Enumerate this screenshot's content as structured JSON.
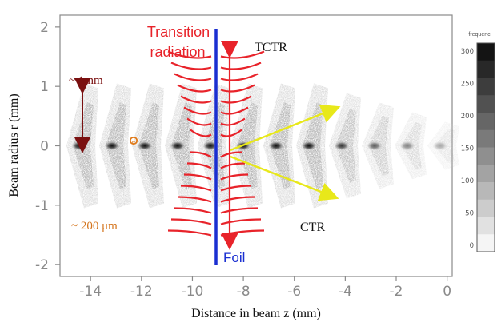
{
  "axes": {
    "x_label": "Distance in beam z (mm)",
    "y_label": "Beam radius r (mm)",
    "x_ticks": [
      "-14",
      "-12",
      "-10",
      "-8",
      "-6",
      "-4",
      "-2",
      "0"
    ],
    "x_tick_values": [
      -14,
      -12,
      -10,
      -8,
      -6,
      -4,
      -2,
      0
    ],
    "y_ticks": [
      "2",
      "1",
      "0",
      "-1",
      "-2"
    ],
    "y_tick_values": [
      2,
      1,
      0,
      -1,
      -2
    ],
    "x_range": [
      -15.2,
      0.2
    ],
    "y_range": [
      -2.2,
      2.2
    ]
  },
  "colorbar": {
    "title": "frequenc",
    "labels": [
      "300",
      "250",
      "200",
      "150",
      "100",
      "50",
      "0"
    ]
  },
  "annotations": {
    "transition_radiation_line1": "Transition",
    "transition_radiation_line2": "radiation",
    "tctr": "TCTR",
    "ctr": "CTR",
    "foil": "Foil",
    "bunch_height": "~ 1mm",
    "bunch_spacing": "~ 200 μm",
    "electron": "e"
  },
  "foil_position_mm": -9.1,
  "colors": {
    "radiation": "#e8232a",
    "foil": "#1a2fd1",
    "rays": "#e8e81a",
    "bunch_arrow": "#7a1010",
    "spacing_text": "#d4741c",
    "electron": "#e07a1a",
    "axis": "#888888"
  }
}
